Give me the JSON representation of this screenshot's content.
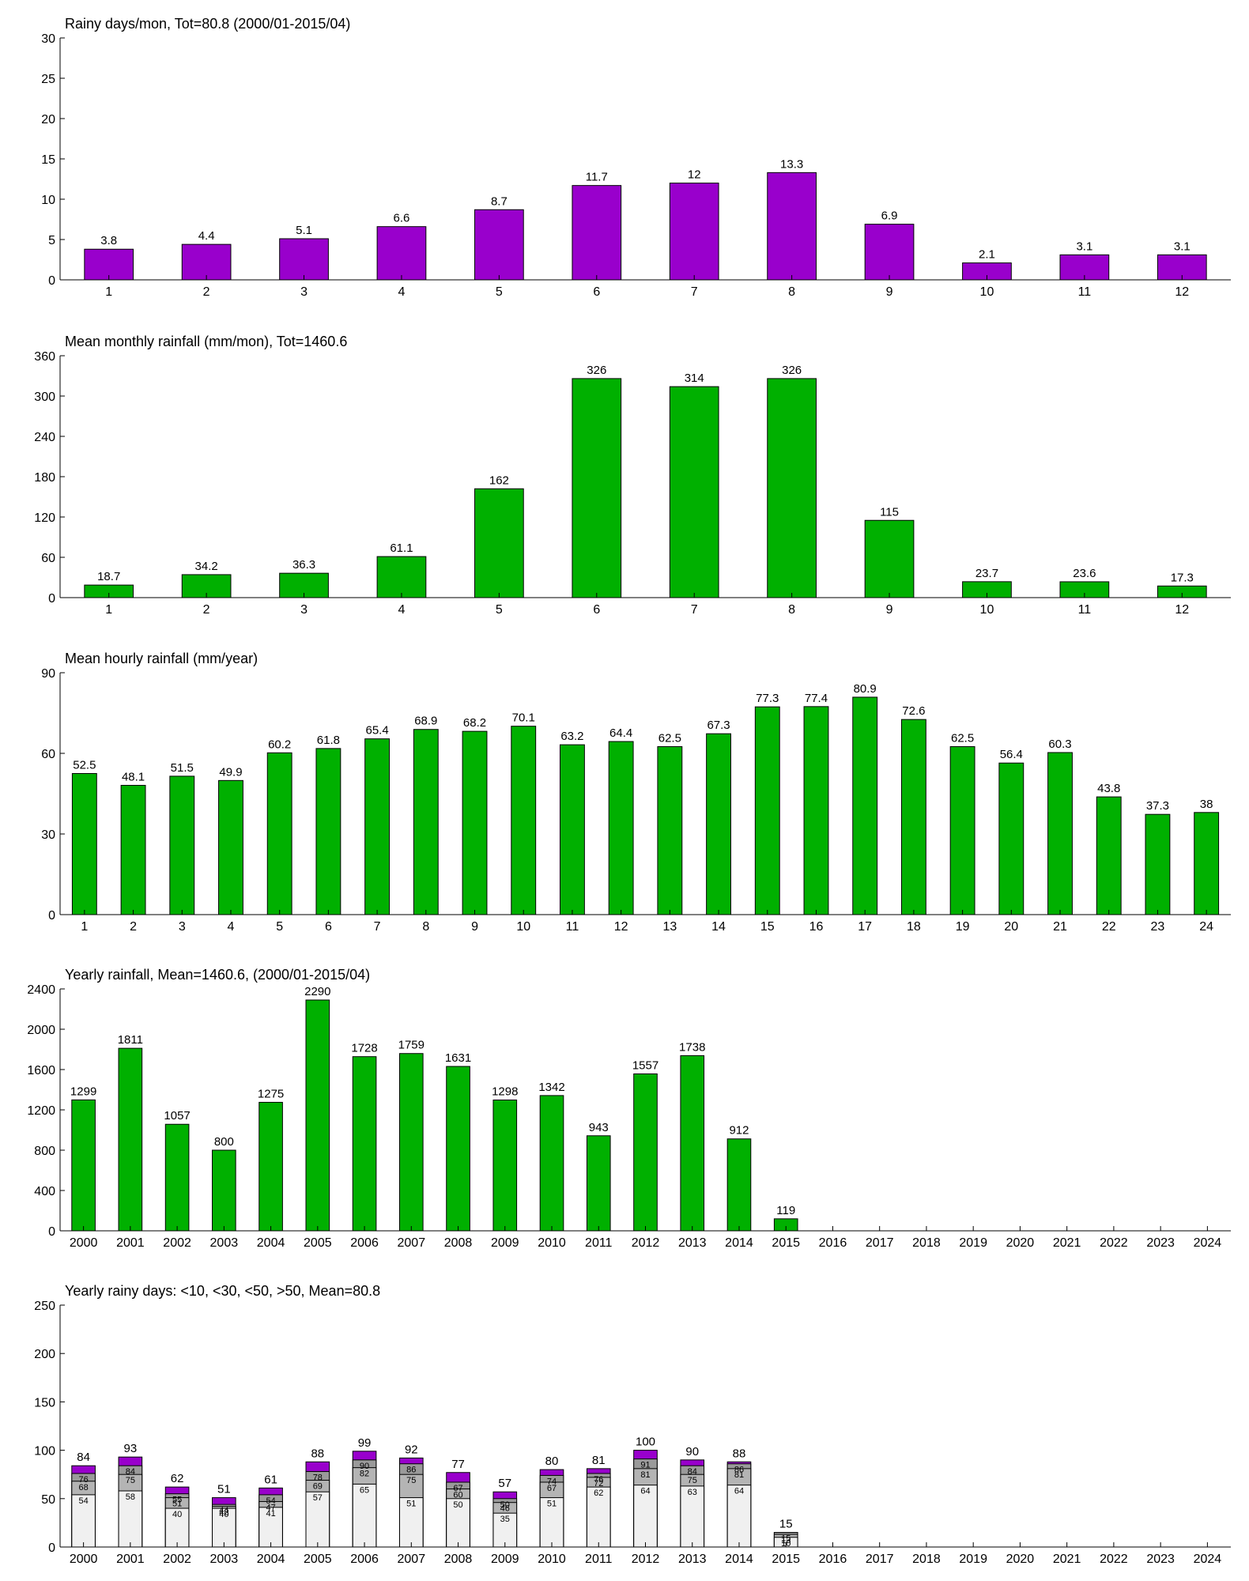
{
  "chart_data": [
    {
      "type": "bar",
      "title": "Rainy days/mon, Tot=80.8 (2000/01-2015/04)",
      "categories": [
        "1",
        "2",
        "3",
        "4",
        "5",
        "6",
        "7",
        "8",
        "9",
        "10",
        "11",
        "12"
      ],
      "values": [
        3.8,
        4.4,
        5.1,
        6.6,
        8.7,
        11.7,
        12,
        13.3,
        6.9,
        2.1,
        3.1,
        3.1
      ],
      "color": "#9900cc",
      "ylim": [
        0,
        30
      ],
      "yticks": [
        0,
        5,
        10,
        15,
        20,
        25,
        30
      ]
    },
    {
      "type": "bar",
      "title": "Mean monthly rainfall (mm/mon), Tot=1460.6",
      "categories": [
        "1",
        "2",
        "3",
        "4",
        "5",
        "6",
        "7",
        "8",
        "9",
        "10",
        "11",
        "12"
      ],
      "values": [
        18.7,
        34.2,
        36.3,
        61.1,
        162,
        326,
        314,
        326,
        115,
        23.7,
        23.6,
        17.3
      ],
      "color": "#00b000",
      "ylim": [
        0,
        360
      ],
      "yticks": [
        0,
        60,
        120,
        180,
        240,
        300,
        360
      ]
    },
    {
      "type": "bar",
      "title": "Mean hourly rainfall (mm/year)",
      "categories": [
        "1",
        "2",
        "3",
        "4",
        "5",
        "6",
        "7",
        "8",
        "9",
        "10",
        "11",
        "12",
        "13",
        "14",
        "15",
        "16",
        "17",
        "18",
        "19",
        "20",
        "21",
        "22",
        "23",
        "24"
      ],
      "values": [
        52.5,
        48.1,
        51.5,
        49.9,
        60.2,
        61.8,
        65.4,
        68.9,
        68.2,
        70.1,
        63.2,
        64.4,
        62.5,
        67.3,
        77.3,
        77.4,
        80.9,
        72.6,
        62.5,
        56.4,
        60.3,
        43.8,
        37.3,
        38
      ],
      "color": "#00b000",
      "ylim": [
        0,
        90
      ],
      "yticks": [
        0,
        30,
        60,
        90
      ]
    },
    {
      "type": "bar",
      "title": "Yearly rainfall, Mean=1460.6, (2000/01-2015/04)",
      "categories": [
        "2000",
        "2001",
        "2002",
        "2003",
        "2004",
        "2005",
        "2006",
        "2007",
        "2008",
        "2009",
        "2010",
        "2011",
        "2012",
        "2013",
        "2014",
        "2015",
        "2016",
        "2017",
        "2018",
        "2019",
        "2020",
        "2021",
        "2022",
        "2023",
        "2024"
      ],
      "values": [
        1299,
        1811,
        1057,
        800,
        1275,
        2290,
        1728,
        1759,
        1631,
        1298,
        1342,
        943,
        1557,
        1738,
        912,
        119,
        null,
        null,
        null,
        null,
        null,
        null,
        null,
        null,
        null
      ],
      "color": "#00b000",
      "ylim": [
        0,
        2400
      ],
      "yticks": [
        0,
        400,
        800,
        1200,
        1600,
        2000,
        2400
      ]
    },
    {
      "type": "overlap-bar",
      "title": "Yearly rainy days: <10, <30, <50, >50, Mean=80.8",
      "categories": [
        "2000",
        "2001",
        "2002",
        "2003",
        "2004",
        "2005",
        "2006",
        "2007",
        "2008",
        "2009",
        "2010",
        "2011",
        "2012",
        "2013",
        "2014",
        "2015",
        "2016",
        "2017",
        "2018",
        "2019",
        "2020",
        "2021",
        "2022",
        "2023",
        "2024"
      ],
      "series": [
        {
          "color": "#f0f0f0",
          "values": [
            54,
            58,
            40,
            40,
            41,
            57,
            65,
            51,
            50,
            35,
            51,
            62,
            64,
            63,
            64,
            10,
            null,
            null,
            null,
            null,
            null,
            null,
            null,
            null,
            null
          ]
        },
        {
          "color": "#b4b4b4",
          "values": [
            68,
            75,
            51,
            42,
            47,
            69,
            82,
            75,
            60,
            46,
            67,
            72,
            81,
            75,
            81,
            13,
            null,
            null,
            null,
            null,
            null,
            null,
            null,
            null,
            null
          ]
        },
        {
          "color": "#9a9a9a",
          "values": [
            76,
            84,
            55,
            44,
            54,
            78,
            90,
            86,
            67,
            50,
            74,
            76,
            91,
            84,
            86,
            15,
            null,
            null,
            null,
            null,
            null,
            null,
            null,
            null,
            null
          ]
        },
        {
          "color": "#9900cc",
          "values": [
            84,
            93,
            62,
            51,
            61,
            88,
            99,
            92,
            77,
            57,
            80,
            81,
            100,
            90,
            88,
            15,
            null,
            null,
            null,
            null,
            null,
            null,
            null,
            null,
            null
          ]
        }
      ],
      "ylim": [
        0,
        250
      ],
      "yticks": [
        0,
        50,
        100,
        150,
        200,
        250
      ]
    }
  ]
}
